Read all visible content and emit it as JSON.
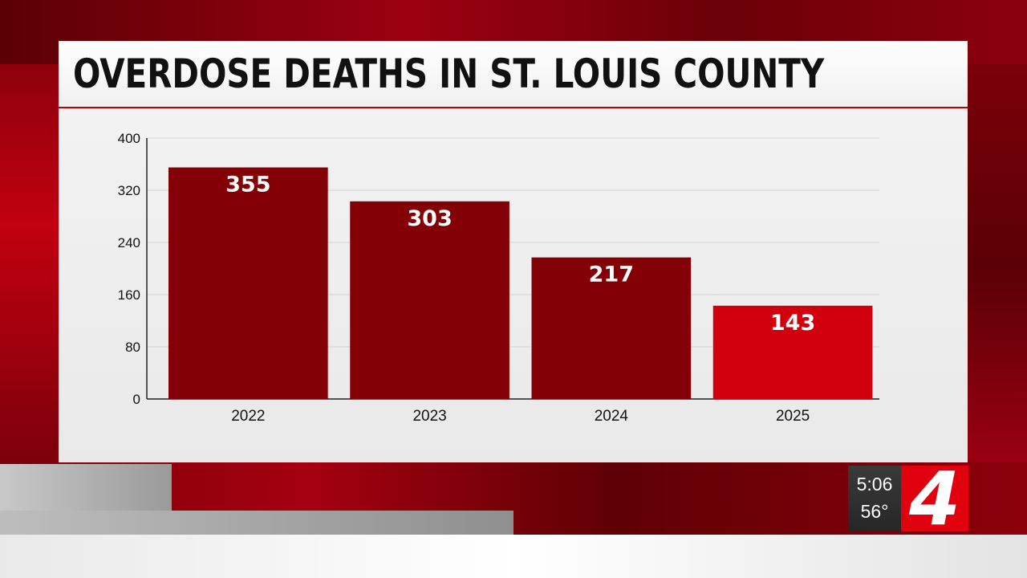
{
  "title": "OVERDOSE DEATHS IN ST. LOUIS COUNTY",
  "colors": {
    "bar_default": "#820006",
    "bar_highlight": "#d1000d",
    "accent": "#b8000c"
  },
  "chart_data": {
    "type": "bar",
    "title": "OVERDOSE DEATHS IN ST. LOUIS COUNTY",
    "categories": [
      "2022",
      "2023",
      "2024",
      "2025"
    ],
    "values": [
      355,
      303,
      217,
      143
    ],
    "data_labels": [
      "355",
      "303",
      "217",
      "143"
    ],
    "highlight_index": 3,
    "ylim": [
      0,
      400
    ],
    "yticks": [
      0,
      80,
      160,
      240,
      320,
      400
    ],
    "ytick_labels": [
      "0",
      "80",
      "160",
      "240",
      "320",
      "400"
    ],
    "grid": true,
    "xlabel": "",
    "ylabel": ""
  },
  "station_bug": {
    "time": "5:06",
    "temperature": "56°",
    "logo": "4"
  }
}
